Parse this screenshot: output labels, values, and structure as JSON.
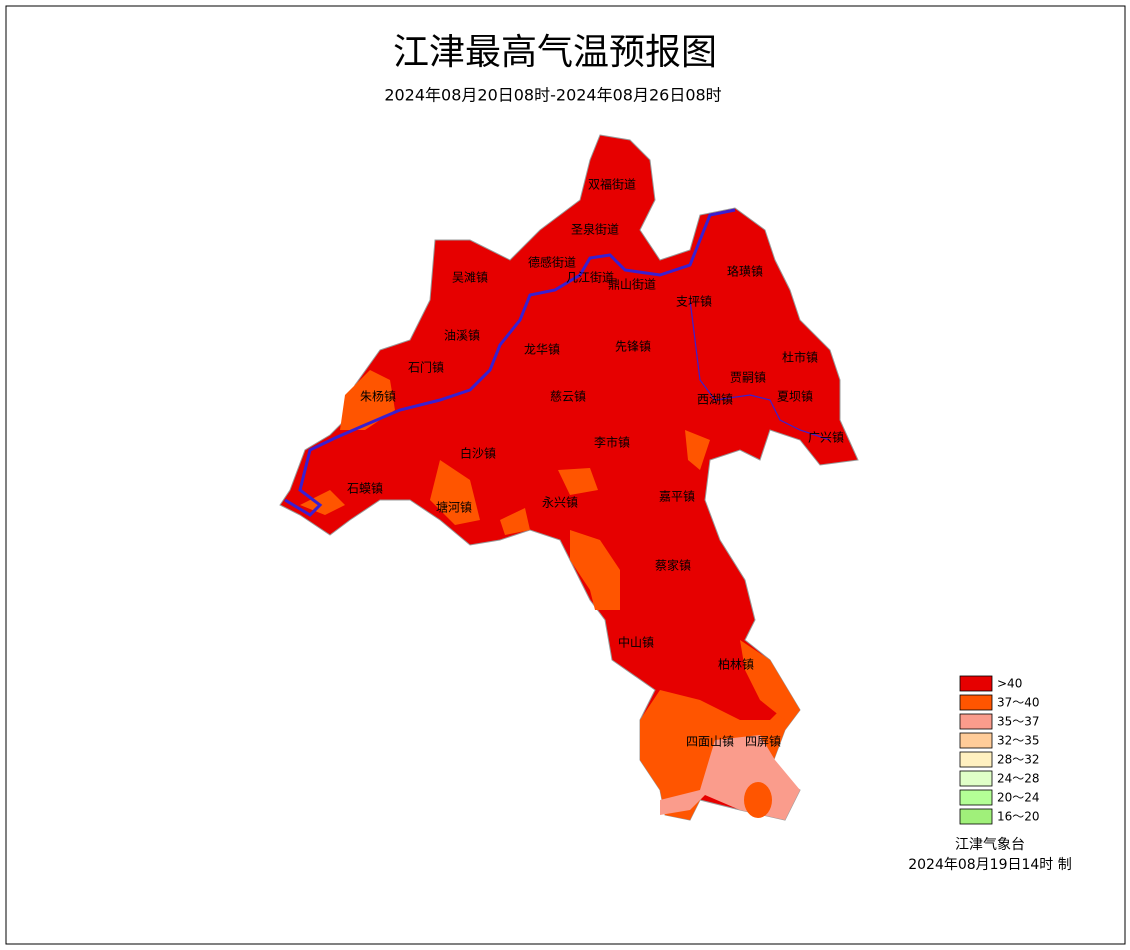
{
  "title": "江津最高气温预报图",
  "subtitle": "2024年08月20日08时-2024年08月26日08时",
  "towns": [
    "双福街道",
    "圣泉街道",
    "德感街道",
    "几江街道",
    "鼎山街道",
    "珞璜镇",
    "吴滩镇",
    "支坪镇",
    "油溪镇",
    "龙华镇",
    "先锋镇",
    "石门镇",
    "朱杨镇",
    "慈云镇",
    "贾嗣镇",
    "西湖镇",
    "杜市镇",
    "夏坝镇",
    "广兴镇",
    "李市镇",
    "白沙镇",
    "石蟆镇",
    "塘河镇",
    "永兴镇",
    "嘉平镇",
    "蔡家镇",
    "中山镇",
    "柏林镇",
    "四面山镇",
    "四屏镇"
  ],
  "legend": [
    {
      "label": ">40",
      "color": "#e60000"
    },
    {
      "label": "37～40",
      "color": "#ff5500"
    },
    {
      "label": "35～37",
      "color": "#fa9c8c"
    },
    {
      "label": "32～35",
      "color": "#ffcc99"
    },
    {
      "label": "28～32",
      "color": "#fff0c0"
    },
    {
      "label": "24～28",
      "color": "#e0ffc8"
    },
    {
      "label": "20～24",
      "color": "#b4ff96"
    },
    {
      "label": "16～20",
      "color": "#a0f07a"
    }
  ],
  "footer": {
    "agency": "江津气象台",
    "issued": "2024年08月19日14时 制"
  }
}
